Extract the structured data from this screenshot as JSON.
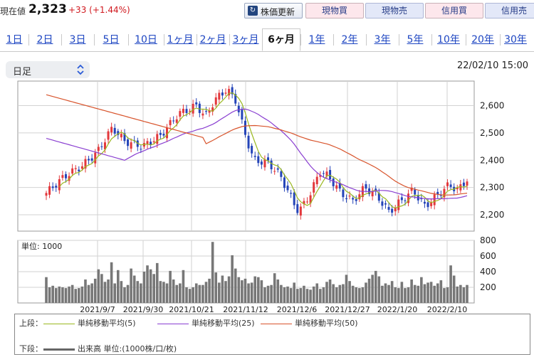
{
  "header": {
    "price_label": "現在値",
    "price_value": "2,323",
    "price_change": "+33 (+1.44%)",
    "update_button": "株価更新",
    "trade_buttons": [
      "現物買",
      "現物売",
      "信用買",
      "信用売"
    ]
  },
  "periods": {
    "tabs": [
      "1日",
      "2日",
      "3日",
      "5日",
      "10日",
      "1ヶ月",
      "2ヶ月",
      "3ヶ月",
      "6ヶ月",
      "1年",
      "2年",
      "3年",
      "5年",
      "10年",
      "20年",
      "30年"
    ],
    "active": "6ヶ月"
  },
  "controls": {
    "bar_type": "日足",
    "datetime": "22/02/10 15:00"
  },
  "chart_data": [
    {
      "type": "candlestick",
      "y_ticks": [
        "2,600",
        "2,500",
        "2,400",
        "2,300",
        "2,200"
      ],
      "ylim": [
        2140,
        2690
      ],
      "x_labels": [
        "2021/9/7",
        "2021/9/30",
        "2021/10/21",
        "2021/11/12",
        "2021/12/6",
        "2021/12/27",
        "2022/1/20",
        "2022/2/10"
      ],
      "grid": true,
      "series": [
        {
          "name": "単純移動平均(5)",
          "color": "#9ab81f"
        },
        {
          "name": "単純移動平均(25)",
          "color": "#8a3fd1"
        },
        {
          "name": "単純移動平均(50)",
          "color": "#d8542c"
        }
      ],
      "last_close": 2323
    },
    {
      "type": "bar",
      "title": "単位: 1000",
      "y_ticks": [
        "800",
        "600",
        "400",
        "200"
      ],
      "ylim": [
        0,
        800
      ],
      "values": [
        330,
        200,
        220,
        190,
        210,
        200,
        190,
        210,
        230,
        180,
        190,
        210,
        300,
        230,
        250,
        310,
        430,
        370,
        270,
        300,
        520,
        250,
        420,
        280,
        200,
        230,
        440,
        350,
        280,
        250,
        400,
        480,
        430,
        370,
        510,
        280,
        270,
        250,
        410,
        300,
        230,
        250,
        420,
        200,
        180,
        200,
        250,
        230,
        230,
        270,
        310,
        780,
        390,
        260,
        350,
        280,
        340,
        610,
        440,
        330,
        290,
        310,
        250,
        260,
        340,
        330,
        290,
        200,
        220,
        230,
        380,
        300,
        230,
        200,
        210,
        190,
        260,
        180,
        190,
        220,
        180,
        170,
        210,
        250,
        180,
        200,
        270,
        300,
        240,
        200,
        230,
        240,
        360,
        280,
        220,
        200,
        190,
        200,
        260,
        310,
        360,
        410,
        340,
        220,
        250,
        230,
        280,
        200,
        190,
        270,
        190,
        200,
        300,
        230,
        220,
        330,
        240,
        260,
        270,
        220,
        250,
        290,
        190,
        200,
        480,
        350,
        210,
        230,
        200,
        230
      ]
    }
  ],
  "legend": {
    "upper_label": "上段：",
    "lower_label": "下段：",
    "items": [
      {
        "label": "単純移動平均(5)",
        "color": "#9ab81f"
      },
      {
        "label": "単純移動平均(25)",
        "color": "#8a3fd1"
      },
      {
        "label": "単純移動平均(50)",
        "color": "#d8542c"
      }
    ],
    "volume_label": "出来高 単位:(1000株/口/枚)",
    "volume_color": "#666666"
  }
}
